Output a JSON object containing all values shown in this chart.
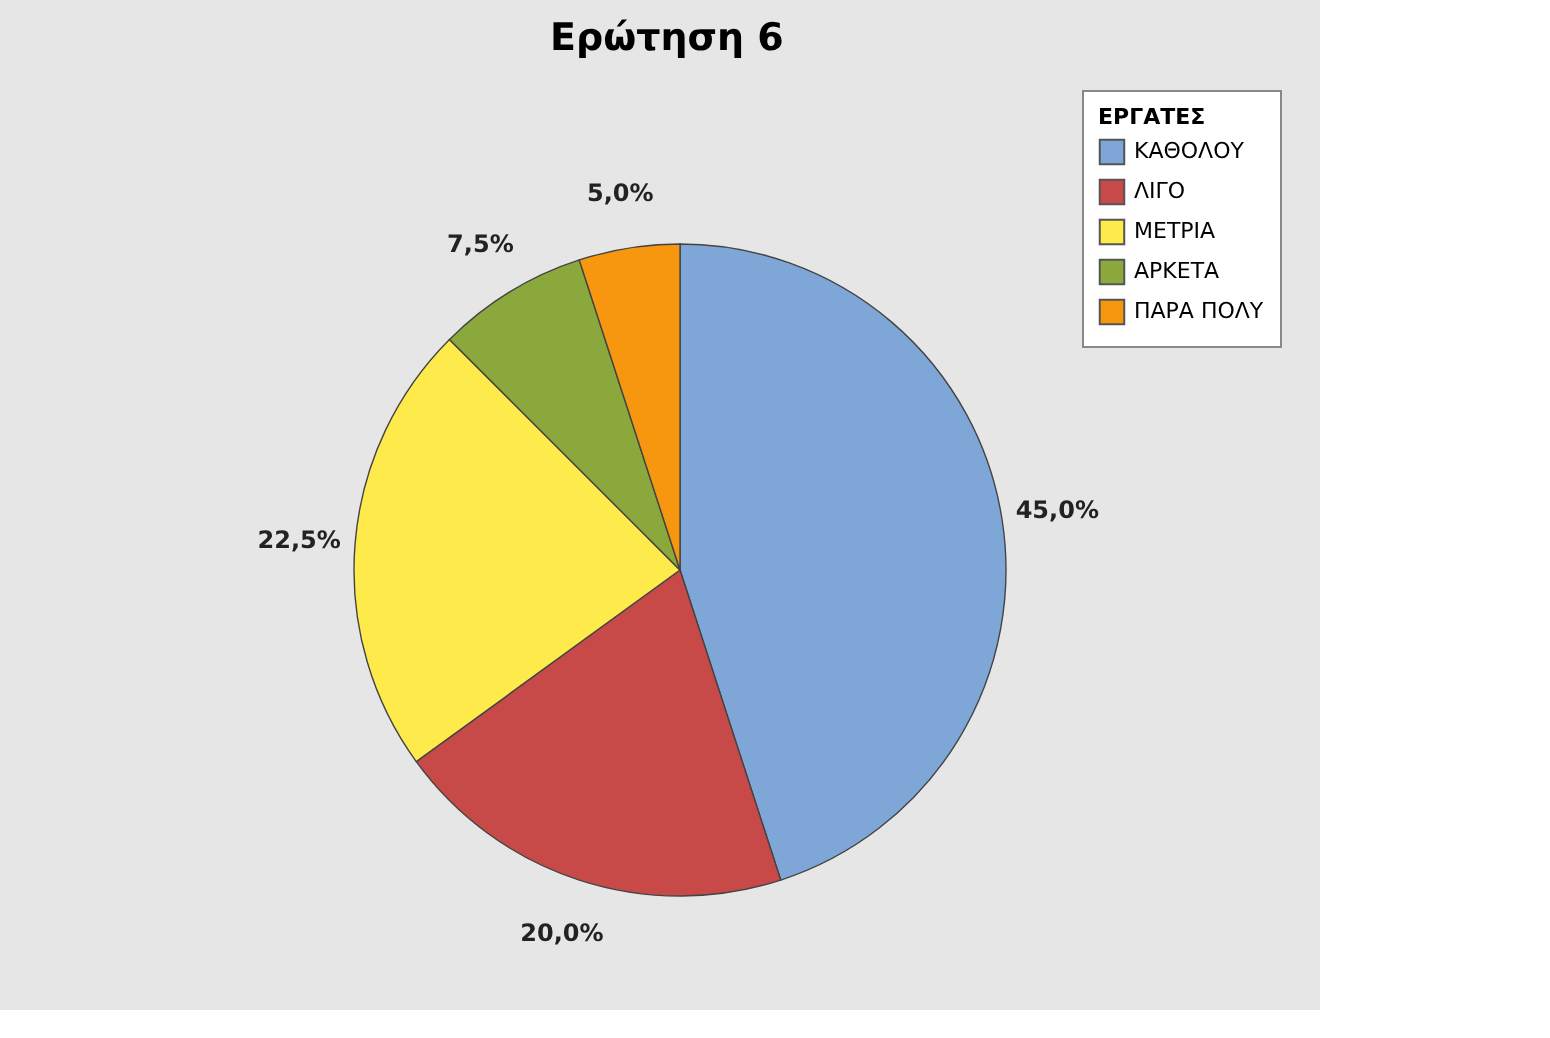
{
  "chart_data": {
    "type": "pie",
    "title": "Ερώτηση 6",
    "legend_title": "ΕΡΓΑΤΕΣ",
    "legend": "top right",
    "categories": [
      "ΚΑΘΟΛΟΥ",
      "ΛΙΓΟ",
      "ΜΕΤΡΙΑ",
      "ΑΡΚΕΤΑ",
      "ΠΑΡΑ ΠΟΛΥ"
    ],
    "values": [
      45,
      20,
      22.5,
      7.5,
      5
    ],
    "colors": [
      "#7ea7d8",
      "#c84a48",
      "#ffea4c",
      "#8aa83c",
      "#f7960f"
    ],
    "value_labels": [
      "45,0%",
      "20,0%",
      "22,5%",
      "7,5%",
      "5,0%"
    ]
  }
}
